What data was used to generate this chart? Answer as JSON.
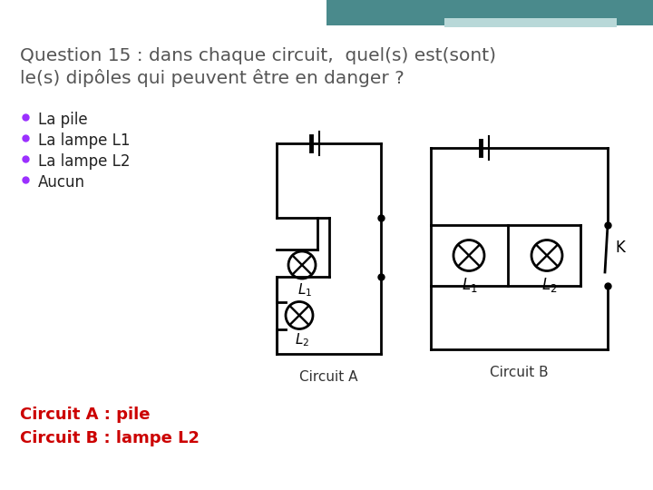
{
  "title_line1": "Question 15 : dans chaque circuit,  quel(s) est(sont)",
  "title_line2": "le(s) dipôles qui peuvent être en danger ?",
  "bullet_color": "#9B30FF",
  "bullet_items": [
    "La pile",
    "La lampe L1",
    "La lampe L2",
    "Aucun"
  ],
  "answer1_label": "Circuit A : pile",
  "answer2_label": "Circuit B : lampe L2",
  "answer_color": "#CC0000",
  "circuit_a_label": "Circuit A",
  "circuit_b_label": "Circuit B",
  "label_color": "#333333",
  "banner_color": "#4a8a8c",
  "banner_light_color": "#b8d8d8",
  "bg_color": "#ffffff",
  "title_color": "#555555",
  "line_color": "#000000",
  "lw": 2.0
}
